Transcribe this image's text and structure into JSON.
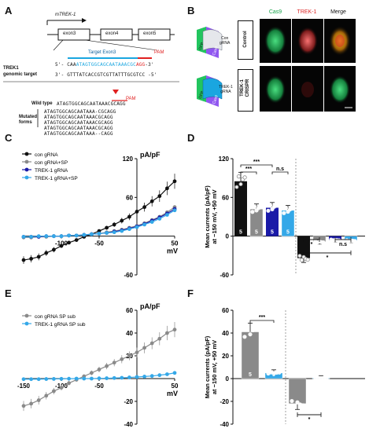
{
  "panel_labels": [
    "A",
    "B",
    "C",
    "D",
    "E",
    "F"
  ],
  "panelA": {
    "gene": "mTREK-1",
    "exons": [
      "exon3",
      "exon4",
      "exon5"
    ],
    "target_label": "Target Exon3",
    "pam": "PAM",
    "genomic_label": "TREK1\ngenomic target",
    "seq_top_prefix": "5'- CAA",
    "seq_top_target": "ATAGTGGCAGCAATAAACGC",
    "seq_top_pam": "AGG",
    "seq_top_suffix": "-3'",
    "seq_bot": "3'- GTTTATCACCGTCGTTATTTGCGTCC -5'",
    "wild_type_label": "Wild type",
    "wild_type_seq": "ATAGTGGCAGCAATAAACGCAGG",
    "pam2": "PAM",
    "mutated_label": "Mutated\nforms",
    "mutated": [
      "ATAGTGGCAGCAATAAA-CGCAGG",
      "ATAGTGGCAGCAATAAACGCAGG",
      "ATAGTGGCAGCAATAAACGCAGG",
      "ATAGTGGCAGCAATAAACGCAGG",
      "ATAGTGGCAGCAATAAA--CAGG"
    ]
  },
  "panelB": {
    "cols": [
      "Cas9",
      "TREK-1",
      "Merge"
    ],
    "rows": [
      "Control",
      "TREK-1\nCRISPR"
    ],
    "diagram1": {
      "cas": "Cas9",
      "grna": "Con\ngRNA",
      "gfp": "GFP"
    },
    "diagram2": {
      "cas": "Cas9",
      "grna": "TREK-1\ngRNA",
      "gfp": "GFP"
    },
    "colors": {
      "cas9": "#22c55e",
      "trek": "#ef4444",
      "dark": "#050505"
    }
  },
  "chart_data": [
    {
      "id": "C",
      "type": "line",
      "ylabel": "pA/pF",
      "xlabel": "mV",
      "xlim": [
        -150,
        50
      ],
      "ylim": [
        -60,
        120
      ],
      "xticks": [
        -100,
        -50,
        50
      ],
      "xtick_labels": [
        "-100",
        "-50",
        "50"
      ],
      "yticks": [
        -60,
        60,
        120
      ],
      "ytick_labels": [
        "-60",
        "60",
        "120"
      ],
      "legend": [
        "con gRNA",
        "con gRNA+SP",
        "TREK-1 gRNA",
        "TREK-1 gRNA+SP"
      ],
      "x": [
        -150,
        -140,
        -130,
        -120,
        -110,
        -100,
        -90,
        -80,
        -70,
        -60,
        -50,
        -40,
        -30,
        -20,
        -10,
        0,
        10,
        20,
        30,
        40,
        50
      ],
      "series": [
        {
          "name": "con gRNA",
          "color": "#111111",
          "values": [
            -37,
            -35,
            -32,
            -26,
            -21,
            -15,
            -10,
            -6,
            -1,
            3,
            8,
            13,
            18,
            24,
            30,
            38,
            45,
            54,
            62,
            74,
            85
          ]
        },
        {
          "name": "con gRNA+SP",
          "color": "#8a8a8a",
          "values": [
            -2,
            -2,
            -1,
            -1,
            0,
            0,
            1,
            1,
            2,
            3,
            4,
            6,
            8,
            10,
            13,
            16,
            20,
            25,
            30,
            37,
            45
          ]
        },
        {
          "name": "TREK-1 gRNA",
          "color": "#1a1aa8",
          "values": [
            -1,
            -1,
            -1,
            0,
            0,
            0,
            1,
            1,
            2,
            3,
            4,
            5,
            7,
            9,
            12,
            15,
            19,
            24,
            29,
            35,
            42
          ]
        },
        {
          "name": "TREK-1 gRNA+SP",
          "color": "#34a8e8",
          "values": [
            -1,
            -1,
            0,
            0,
            0,
            0,
            1,
            1,
            2,
            3,
            4,
            5,
            6,
            8,
            11,
            14,
            18,
            22,
            27,
            33,
            40
          ]
        }
      ]
    },
    {
      "id": "D",
      "type": "bar",
      "ylabel": "Mean currents (pA/pF)\nat −150 mV, +50 mV",
      "ylim": [
        -60,
        120
      ],
      "yticks": [
        -60,
        0,
        60,
        120
      ],
      "bars": [
        {
          "value": 85,
          "color": "#111111",
          "n": "5"
        },
        {
          "value": 42,
          "color": "#8a8a8a",
          "n": "5"
        },
        {
          "value": 44,
          "color": "#1a1aa8",
          "n": "5"
        },
        {
          "value": 40,
          "color": "#34a8e8",
          "n": "5"
        },
        {
          "value": -34,
          "color": "#111111"
        },
        {
          "value": -9,
          "color": "#8a8a8a"
        },
        {
          "value": -6,
          "color": "#1a1aa8"
        },
        {
          "value": -7,
          "color": "#34a8e8"
        }
      ],
      "sig": [
        "***",
        "***",
        "n.s",
        "*",
        "*",
        "n.s"
      ]
    },
    {
      "id": "E",
      "type": "line",
      "ylabel": "pA/pF",
      "xlabel": "mV",
      "xlim": [
        -150,
        50
      ],
      "ylim": [
        -40,
        60
      ],
      "xticks": [
        -150,
        -100,
        -50,
        50
      ],
      "xtick_labels": [
        "-150",
        "-100",
        "-50",
        "50"
      ],
      "yticks": [
        -40,
        -20,
        20,
        40,
        60
      ],
      "ytick_labels": [
        "-40",
        "-20",
        "20",
        "40",
        "60"
      ],
      "legend": [
        "con gRNA SP sub",
        "TREK-1 gRNA SP sub"
      ],
      "x": [
        -150,
        -140,
        -130,
        -120,
        -110,
        -100,
        -90,
        -80,
        -70,
        -60,
        -50,
        -40,
        -30,
        -20,
        -10,
        0,
        10,
        20,
        30,
        40,
        50
      ],
      "series": [
        {
          "name": "con gRNA SP sub",
          "color": "#8a8a8a",
          "values": [
            -24,
            -22,
            -19,
            -15,
            -11,
            -8,
            -4,
            -1,
            2,
            5,
            8,
            11,
            14,
            17,
            20,
            23,
            27,
            31,
            35,
            40,
            43
          ]
        },
        {
          "name": "TREK-1 gRNA SP sub",
          "color": "#34a8e8",
          "values": [
            -0.5,
            -0.5,
            -0.5,
            -0.4,
            -0.3,
            -0.2,
            -0.1,
            0,
            0,
            0,
            0.2,
            0.3,
            0.5,
            0.7,
            1,
            1.4,
            1.8,
            2.3,
            3,
            3.8,
            5
          ]
        }
      ]
    },
    {
      "id": "F",
      "type": "bar",
      "ylabel": "Mean currents (pA/pF)\nat −150 mV, +50 mV",
      "ylim": [
        -40,
        60
      ],
      "yticks": [
        -40,
        -20,
        0,
        20,
        40,
        60
      ],
      "bars": [
        {
          "value": 41,
          "color": "#8a8a8a",
          "n": "5"
        },
        {
          "value": 5,
          "color": "#34a8e8",
          "n": "5"
        },
        {
          "value": -22,
          "color": "#8a8a8a"
        },
        {
          "value": 0.5,
          "color": "#34a8e8"
        }
      ],
      "sig": [
        "***",
        "*"
      ]
    }
  ]
}
